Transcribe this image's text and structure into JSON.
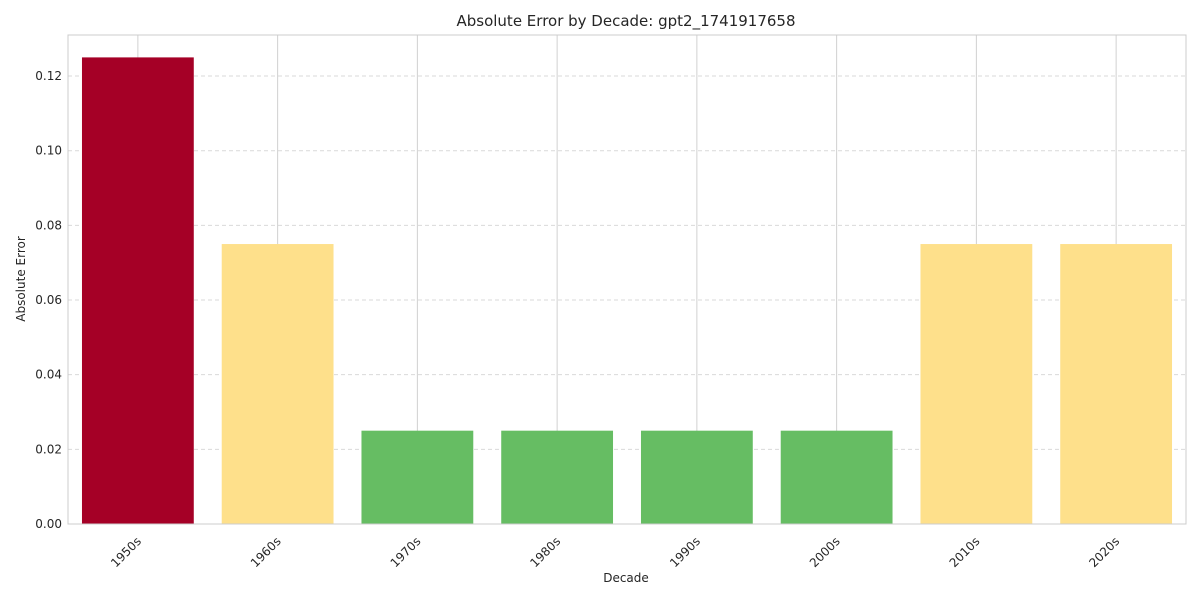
{
  "chart_data": {
    "type": "bar",
    "title": "Absolute Error by Decade: gpt2_1741917658",
    "xlabel": "Decade",
    "ylabel": "Absolute Error",
    "categories": [
      "1950s",
      "1960s",
      "1970s",
      "1980s",
      "1990s",
      "2000s",
      "2010s",
      "2020s"
    ],
    "values": [
      0.125,
      0.075,
      0.025,
      0.025,
      0.025,
      0.025,
      0.075,
      0.075
    ],
    "colors": [
      "#a50026",
      "#fee08b",
      "#66bd63",
      "#66bd63",
      "#66bd63",
      "#66bd63",
      "#fee08b",
      "#fee08b"
    ],
    "ylim": [
      0,
      0.131
    ],
    "yticks": [
      0.0,
      0.02,
      0.04,
      0.06,
      0.08,
      0.1,
      0.12
    ],
    "ytick_labels": [
      "0.00",
      "0.02",
      "0.04",
      "0.06",
      "0.08",
      "0.10",
      "0.12"
    ],
    "grid": true,
    "legend": "none"
  }
}
